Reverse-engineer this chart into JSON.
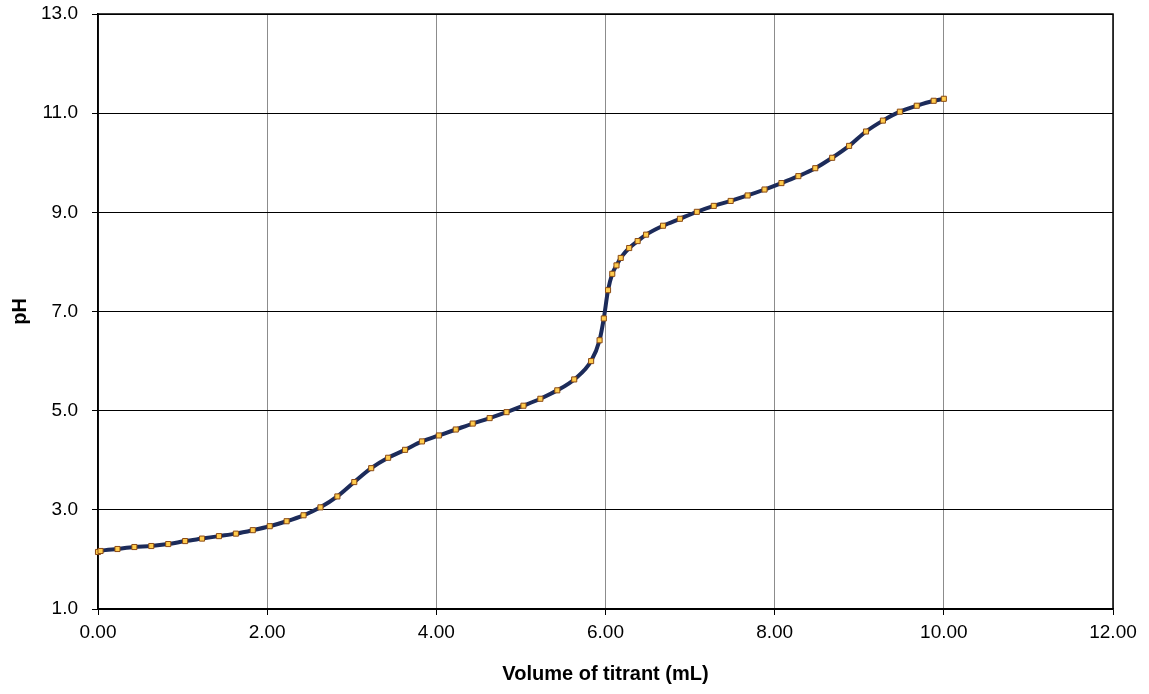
{
  "chart_data": {
    "type": "line",
    "xlabel": "Volume of titrant (mL)",
    "ylabel": "pH",
    "xlim": [
      0,
      12
    ],
    "xticks": [
      {
        "value": 0,
        "label": "0.00"
      },
      {
        "value": 2,
        "label": "2.00"
      },
      {
        "value": 4,
        "label": "4.00"
      },
      {
        "value": 6,
        "label": "6.00"
      },
      {
        "value": 8,
        "label": "8.00"
      },
      {
        "value": 10,
        "label": "10.00"
      },
      {
        "value": 12,
        "label": "12.00"
      }
    ],
    "ylim": [
      1,
      13
    ],
    "yticks": [
      {
        "value": 1,
        "label": "1.0"
      },
      {
        "value": 3,
        "label": "3.0"
      },
      {
        "value": 5,
        "label": "5.0"
      },
      {
        "value": 7,
        "label": "7.0"
      },
      {
        "value": 9,
        "label": "9.0"
      },
      {
        "value": 11,
        "label": "11.0"
      },
      {
        "value": 13,
        "label": "13.0"
      }
    ],
    "grid": true,
    "marker": "square",
    "line_style": "solid",
    "x": [
      0,
      0.03,
      0.23,
      0.43,
      0.63,
      0.83,
      1.03,
      1.23,
      1.43,
      1.63,
      1.83,
      2.03,
      2.23,
      2.43,
      2.63,
      2.83,
      3.03,
      3.23,
      3.43,
      3.63,
      3.83,
      4.03,
      4.23,
      4.43,
      4.63,
      4.83,
      5.03,
      5.23,
      5.43,
      5.63,
      5.83,
      5.93,
      5.98,
      6.03,
      6.08,
      6.13,
      6.18,
      6.28,
      6.38,
      6.48,
      6.68,
      6.88,
      7.08,
      7.28,
      7.48,
      7.68,
      7.88,
      8.08,
      8.28,
      8.48,
      8.68,
      8.88,
      9.08,
      9.28,
      9.48,
      9.68,
      9.88,
      10.0
    ],
    "series": [
      {
        "color": "#1c2b5a",
        "values": [
          2.15,
          2.17,
          2.21,
          2.25,
          2.27,
          2.31,
          2.37,
          2.42,
          2.47,
          2.52,
          2.59,
          2.67,
          2.77,
          2.89,
          3.05,
          3.27,
          3.56,
          3.84,
          4.05,
          4.21,
          4.38,
          4.5,
          4.62,
          4.74,
          4.85,
          4.97,
          5.1,
          5.24,
          5.41,
          5.63,
          6.0,
          6.42,
          6.86,
          7.43,
          7.76,
          7.93,
          8.08,
          8.28,
          8.42,
          8.55,
          8.73,
          8.87,
          9.01,
          9.13,
          9.23,
          9.34,
          9.46,
          9.59,
          9.73,
          9.89,
          10.1,
          10.34,
          10.63,
          10.85,
          11.03,
          11.15,
          11.25,
          11.29
        ]
      }
    ]
  }
}
